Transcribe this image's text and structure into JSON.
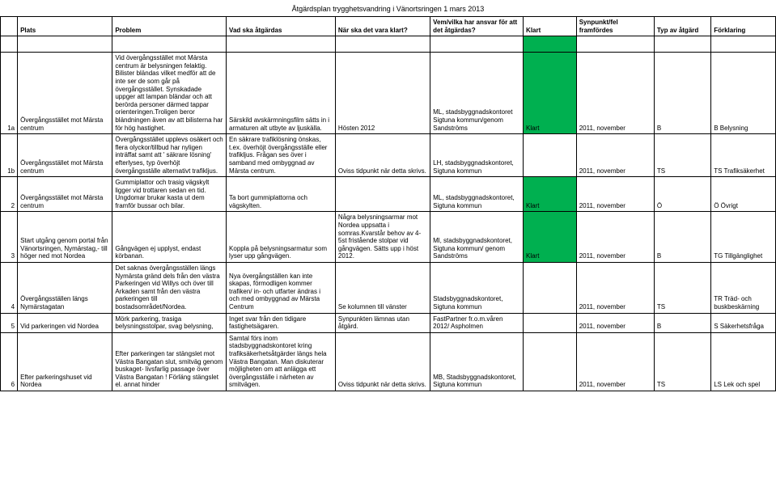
{
  "title": "Åtgärdsplan trygghetsvandring i Vänortsringen 1 mars 2013",
  "headers": {
    "num": "",
    "plats": "Plats",
    "problem": "Problem",
    "atgard": "Vad ska åtgärdas",
    "nar": "När ska det vara klart?",
    "vem": "Vem/vilka har ansvar för att det åtgärdas?",
    "klart": "Klart",
    "syn": "Synpunkt/fel framfördes",
    "typ": "Typ av åtgärd",
    "fork": "Förklaring"
  },
  "rows": [
    {
      "num": "1a",
      "plats": "Övergångsstället mot Märsta centrum",
      "problem": "Vid övergångsstället mot Märsta centrum är belysningen felaktig. Bilister bländas vilket medför att de inte ser de som går på övergångsstället. Synskadade uppger att lampan bländar och att berörda personer därmed tappar orienteringen.Troligen beror bländningen även av att bilisterna har för hög hastighet.",
      "atgard": "Särskild avskärmningsfilm sätts in i armaturen alt utbyte av ljuskälla.",
      "nar": "Hösten 2012",
      "vem": "ML, stadsbyggnadskontoret Sigtuna kommun/genom Sandströms",
      "klart": "Klart",
      "klart_bg": "green",
      "syn": "2011, november",
      "typ": "B",
      "fork": "B Belysning"
    },
    {
      "num": "1b",
      "plats": "Övergångsstället mot Märsta centrum",
      "problem": "Övergångsstället upplevs osäkert och flera olyckor/tillbud har nyligen inträffat samt att ' säkrare lösning' efterlyses, typ överhöjt övergångsställe alternativt trafikljus.",
      "atgard": "En säkrare trafiklösning önskas, t.ex. överhöjt övergångsställe eller trafikljus. Frågan ses över i samband med ombyggnad av Märsta centrum.",
      "nar": "Oviss tidpunkt när detta skrivs.",
      "vem": "LH, stadsbyggnadskontoret, Sigtuna kommun",
      "klart": "",
      "klart_bg": "",
      "syn": "2011, november",
      "typ": "TS",
      "fork": "TS Trafiksäkerhet"
    },
    {
      "num": "2",
      "plats": "Övergångsstället mot Märsta centrum",
      "problem": "Gummiplattor och trasig vägskylt ligger vid trottaren sedan en tid. Ungdomar brukar kasta ut dem framför bussar och bilar.",
      "atgard": "Ta bort gummiplattorna och vägskylten.",
      "nar": "",
      "vem": "ML, stadsbyggnadskontoret, Sigtuna kommun",
      "klart": "Klart",
      "klart_bg": "green",
      "syn": "2011, november",
      "typ": "Ö",
      "fork": "Ö Övrigt"
    },
    {
      "num": "3",
      "plats": "Start utgång genom portal från Vänortsringen, Nymärstag,- till höger ned mot Nordea",
      "problem": "Gångvägen ej upplyst, endast körbanan.",
      "atgard": "Koppla på belysningsarmatur som lyser upp gångvägen.",
      "nar": "Några belysningsarmar mot Nordea uppsatta i somras.Kvarstår behov av 4-5st fristående stolpar vid gångvägen. Sätts upp i höst 2012.",
      "vem": "Ml, stadsbyggnadskontoret, Sigtuna kommun/ genom Sandströms",
      "klart": "Klart",
      "klart_bg": "green",
      "syn": "2011, november",
      "typ": "B",
      "fork": "TG Tillgänglighet"
    },
    {
      "num": "4",
      "plats": "Övergångsställen längs Nymärstagatan",
      "problem": "Det saknas övergångsställen längs Nymärsta gränd dels från den västra Parkeringen vid Willys och över till Arkaden samt från den västra parkeringen till bostadsområdet/Nordea.",
      "atgard": "Nya övergångställen kan inte skapas, förmodligen kommer trafiken/ in- och utfarter ändras i och med ombyggnad av Märsta Centrum",
      "nar": "Se kolumnen till vänster",
      "vem": "Stadsbyggnadskontoret, Sigtuna kommun",
      "klart": "",
      "klart_bg": "",
      "syn": "2011, november",
      "typ": "TS",
      "fork": "TR Träd- och buskbeskärning"
    },
    {
      "num": "5",
      "plats": "Vid parkeringen vid Nordea",
      "problem": "Mörk parkering, trasiga belysningsstolpar, svag belysning,",
      "atgard": "Inget svar från den tidigare fastighetsägaren.",
      "nar": "Synpunkten lämnas utan åtgärd.",
      "vem": "FastPartner fr.o.m.våren 2012/ Aspholmen",
      "klart": "",
      "klart_bg": "",
      "syn": "2011, november",
      "typ": "B",
      "fork": "S Säkerhetsfråga"
    },
    {
      "num": "6",
      "plats": "Efter parkeringshuset vid Nordea",
      "problem": "Efter parkeringen tar stängslet mot Västra Bangatan slut, smitväg genom buskaget- livsfarlig passage över Västra Bangatan ! Förläng stängslet el. annat hinder",
      "atgard": "Samtal förs inom stadsbyggnadskontoret kring trafiksäkerhetsåtgärder längs hela Västra Bangatan. Man diskuterar möjligheten om att anlägga ett övergångsställe i närheten av smitvägen.",
      "nar": "Oviss tidpunkt när detta skrivs.",
      "vem": "MB, Stadsbyggnadskontoret, Sigtuna kommun",
      "klart": "",
      "klart_bg": "",
      "syn": "2011, november",
      "typ": "TS",
      "fork": "LS Lek och spel"
    }
  ]
}
